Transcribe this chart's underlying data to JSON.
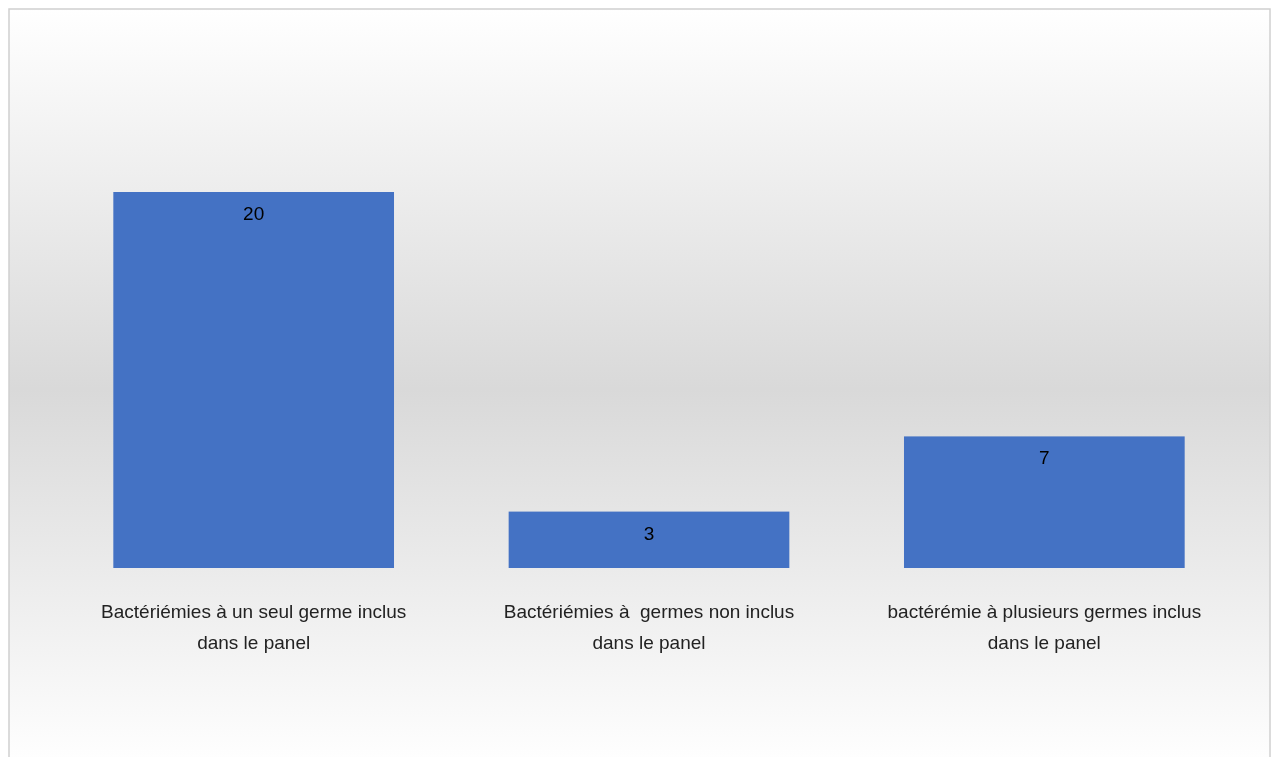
{
  "chart_data": {
    "type": "bar",
    "categories": [
      "Bactériémies à un seul germe inclus dans le panel",
      "Bactériémies à  germes non inclus dans le panel",
      "bactérémie à plusieurs germes inclus dans le panel"
    ],
    "values": [
      20,
      3,
      7
    ],
    "color": "#4472c4",
    "data_labels": true
  }
}
